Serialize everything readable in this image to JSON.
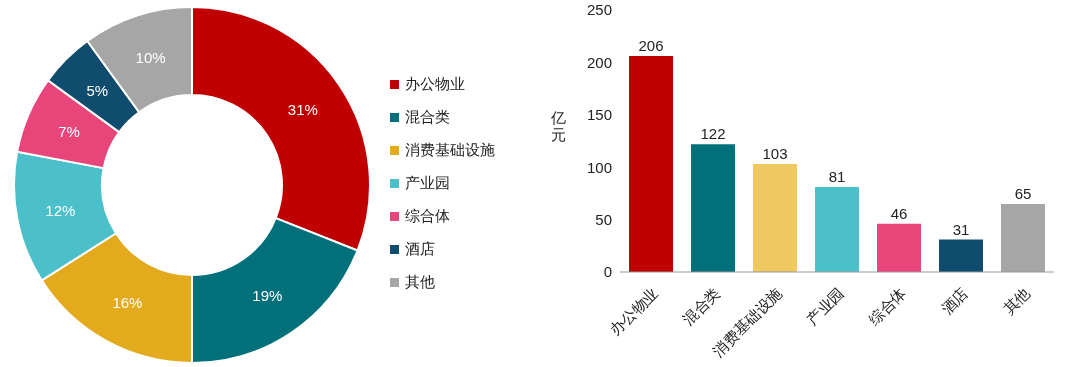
{
  "chart_data": [
    {
      "type": "donut",
      "categories": [
        "办公物业",
        "混合类",
        "消费基础设施",
        "产业园",
        "综合体",
        "酒店",
        "其他"
      ],
      "values": [
        31,
        19,
        16,
        12,
        7,
        5,
        10
      ],
      "value_labels": [
        "31%",
        "19%",
        "16%",
        "12%",
        "7%",
        "5%",
        "10%"
      ],
      "colors": [
        "#c00000",
        "#00707a",
        "#e3aa1e",
        "#4bbfca",
        "#e8457a",
        "#0f4c6e",
        "#a6a6a6"
      ],
      "legend": "right"
    },
    {
      "type": "bar",
      "categories": [
        "办公物业",
        "混合类",
        "消费基础设施",
        "产业园",
        "综合体",
        "酒店",
        "其他"
      ],
      "values": [
        206,
        122,
        103,
        81,
        46,
        31,
        65
      ],
      "colors": [
        "#c00000",
        "#00707a",
        "#f0c860",
        "#4bbfca",
        "#e8457a",
        "#0f4c6e",
        "#a6a6a6"
      ],
      "ylabel": "亿元",
      "ylim": [
        0,
        250
      ],
      "yticks": [
        0,
        50,
        100,
        150,
        200,
        250
      ],
      "data_labels": true
    }
  ]
}
